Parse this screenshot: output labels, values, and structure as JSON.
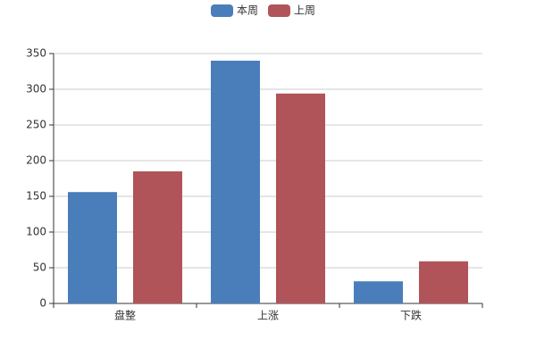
{
  "chart_data": {
    "type": "bar",
    "categories": [
      "盘整",
      "上涨",
      "下跌"
    ],
    "series": [
      {
        "name": "本周",
        "color": "#4a7ebb",
        "values": [
          156,
          340,
          31
        ]
      },
      {
        "name": "上周",
        "color": "#b0545a",
        "values": [
          185,
          294,
          59
        ]
      }
    ],
    "ylim": [
      0,
      350
    ],
    "yticks": [
      0,
      50,
      100,
      150,
      200,
      250,
      300,
      350
    ],
    "grid": true,
    "legend": "top"
  }
}
